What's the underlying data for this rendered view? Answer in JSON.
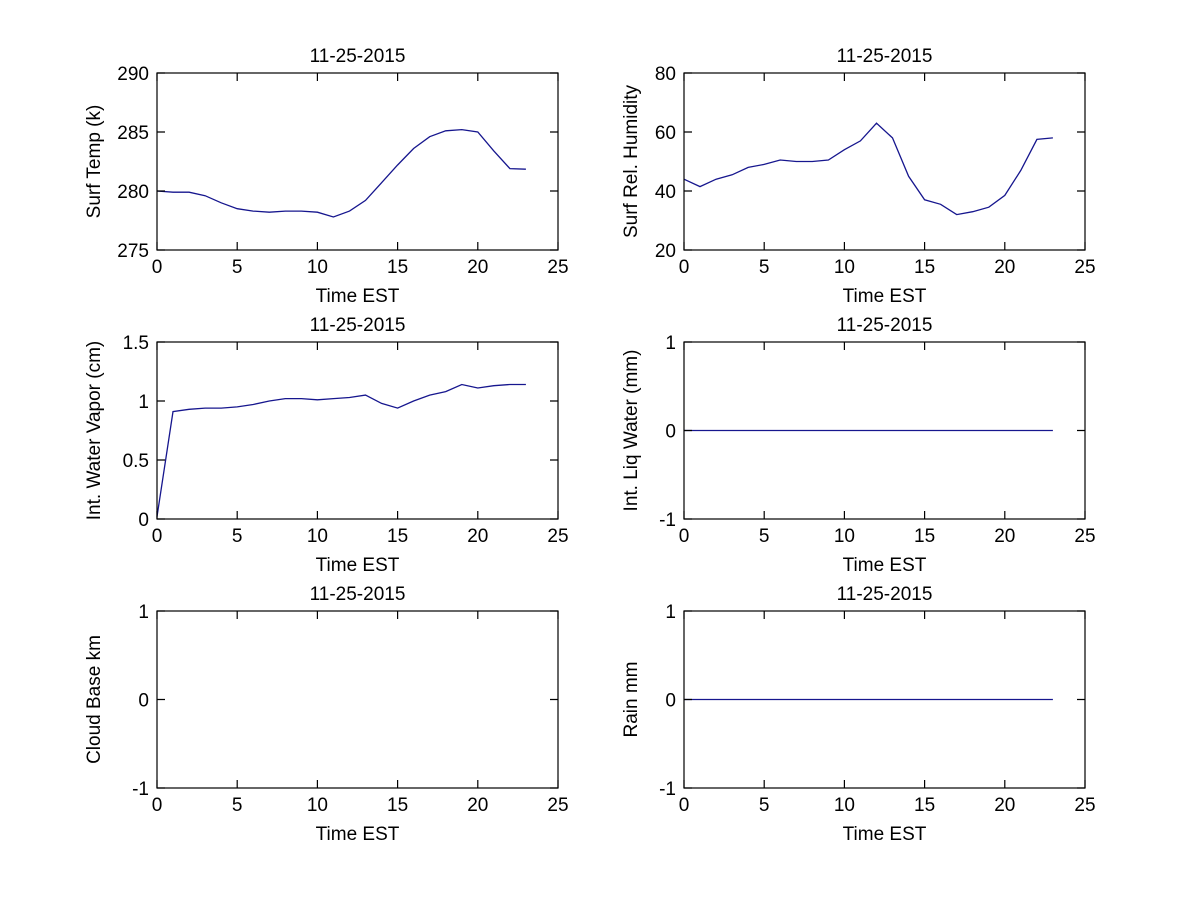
{
  "figure": {
    "background": "#ffffff",
    "axis_color": "#000000",
    "text_color": "#000000",
    "line_color": "#16168e"
  },
  "chart_data": [
    {
      "id": "surf-temp",
      "type": "line",
      "title": "11-25-2015",
      "xlabel": "Time EST",
      "ylabel": "Surf Temp (k)",
      "xlim": [
        0,
        25
      ],
      "ylim": [
        275,
        290
      ],
      "xticks": [
        0,
        5,
        10,
        15,
        20,
        25
      ],
      "yticks": [
        275,
        280,
        285,
        290
      ],
      "grid": false,
      "legend": null,
      "x": [
        0,
        1,
        2,
        3,
        4,
        5,
        6,
        7,
        8,
        9,
        10,
        11,
        12,
        13,
        14,
        15,
        16,
        17,
        18,
        19,
        20,
        21,
        22,
        23
      ],
      "y": [
        280,
        279.9,
        279.9,
        279.6,
        279,
        278.5,
        278.3,
        278.2,
        278.3,
        278.3,
        278.2,
        277.8,
        278.3,
        279.2,
        280.7,
        282.2,
        283.6,
        284.6,
        285.1,
        285.2,
        285,
        283.4,
        281.9,
        281.85
      ]
    },
    {
      "id": "surf-rel-humidity",
      "type": "line",
      "title": "11-25-2015",
      "xlabel": "Time EST",
      "ylabel": "Surf Rel. Humidity",
      "xlim": [
        0,
        25
      ],
      "ylim": [
        20,
        80
      ],
      "xticks": [
        0,
        5,
        10,
        15,
        20,
        25
      ],
      "yticks": [
        20,
        40,
        60,
        80
      ],
      "grid": false,
      "legend": null,
      "x": [
        0,
        1,
        2,
        3,
        4,
        5,
        6,
        7,
        8,
        9,
        10,
        11,
        12,
        13,
        14,
        15,
        16,
        17,
        18,
        19,
        20,
        21,
        22,
        23
      ],
      "y": [
        44,
        41.5,
        44,
        45.5,
        48,
        49,
        50.5,
        50,
        50,
        50.5,
        54,
        57,
        63,
        58,
        45,
        37,
        35.5,
        32,
        33,
        34.5,
        38.5,
        47,
        57.5,
        58
      ]
    },
    {
      "id": "int-water-vapor",
      "type": "line",
      "title": "11-25-2015",
      "xlabel": "Time EST",
      "ylabel": "Int. Water Vapor (cm)",
      "xlim": [
        0,
        25
      ],
      "ylim": [
        0,
        1.5
      ],
      "xticks": [
        0,
        5,
        10,
        15,
        20,
        25
      ],
      "yticks": [
        0,
        0.5,
        1,
        1.5
      ],
      "grid": false,
      "legend": null,
      "x": [
        0,
        1,
        2,
        3,
        4,
        5,
        6,
        7,
        8,
        9,
        10,
        11,
        12,
        13,
        14,
        15,
        16,
        17,
        18,
        19,
        20,
        21,
        22,
        23
      ],
      "y": [
        0.02,
        0.91,
        0.93,
        0.94,
        0.94,
        0.95,
        0.97,
        1.0,
        1.02,
        1.02,
        1.01,
        1.02,
        1.03,
        1.05,
        0.98,
        0.94,
        1.0,
        1.05,
        1.08,
        1.14,
        1.11,
        1.13,
        1.14,
        1.14
      ]
    },
    {
      "id": "int-liq-water",
      "type": "line",
      "title": "11-25-2015",
      "xlabel": "Time EST",
      "ylabel": "Int. Liq Water (mm)",
      "xlim": [
        0,
        25
      ],
      "ylim": [
        -1,
        1
      ],
      "xticks": [
        0,
        5,
        10,
        15,
        20,
        25
      ],
      "yticks": [
        -1,
        0,
        1
      ],
      "grid": false,
      "legend": null,
      "x": [
        0,
        1,
        2,
        3,
        4,
        5,
        6,
        7,
        8,
        9,
        10,
        11,
        12,
        13,
        14,
        15,
        16,
        17,
        18,
        19,
        20,
        21,
        22,
        23
      ],
      "y": [
        0,
        0,
        0,
        0,
        0,
        0,
        0,
        0,
        0,
        0,
        0,
        0,
        0,
        0,
        0,
        0,
        0,
        0,
        0,
        0,
        0,
        0,
        0,
        0
      ]
    },
    {
      "id": "cloud-base",
      "type": "line",
      "title": "11-25-2015",
      "xlabel": "Time EST",
      "ylabel": "Cloud Base km",
      "xlim": [
        0,
        25
      ],
      "ylim": [
        -1,
        1
      ],
      "xticks": [
        0,
        5,
        10,
        15,
        20,
        25
      ],
      "yticks": [
        -1,
        0,
        1
      ],
      "grid": false,
      "legend": null,
      "x": [],
      "y": []
    },
    {
      "id": "rain",
      "type": "line",
      "title": "11-25-2015",
      "xlabel": "Time EST",
      "ylabel": "Rain mm",
      "xlim": [
        0,
        25
      ],
      "ylim": [
        -1,
        1
      ],
      "xticks": [
        0,
        5,
        10,
        15,
        20,
        25
      ],
      "yticks": [
        -1,
        0,
        1
      ],
      "grid": false,
      "legend": null,
      "x": [
        0,
        1,
        2,
        3,
        4,
        5,
        6,
        7,
        8,
        9,
        10,
        11,
        12,
        13,
        14,
        15,
        16,
        17,
        18,
        19,
        20,
        21,
        22,
        23
      ],
      "y": [
        0,
        0,
        0,
        0,
        0,
        0,
        0,
        0,
        0,
        0,
        0,
        0,
        0,
        0,
        0,
        0,
        0,
        0,
        0,
        0,
        0,
        0,
        0,
        0
      ]
    }
  ]
}
